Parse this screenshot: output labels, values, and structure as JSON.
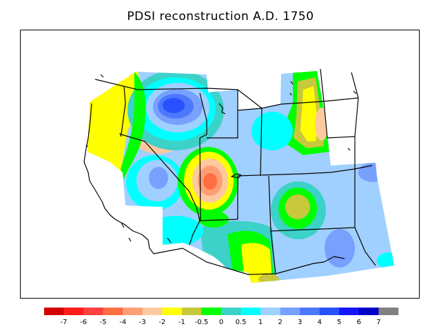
{
  "title": "PDSI reconstruction A.D. 1750",
  "legend": {
    "colors": [
      "#d40000",
      "#ff1c1c",
      "#ff4040",
      "#ff6e40",
      "#ff9e74",
      "#ffc9a0",
      "#ffff00",
      "#c8c83c",
      "#00ff00",
      "#3cd2c8",
      "#00ffff",
      "#a0d0ff",
      "#78a0ff",
      "#4c78ff",
      "#2850ff",
      "#1414ff",
      "#0000c8",
      "#808080"
    ],
    "labels": [
      "-7",
      "-6",
      "-5",
      "-4",
      "-3",
      "-2",
      "-1",
      "-0.5",
      "0",
      "0.5",
      "1",
      "2",
      "3",
      "4",
      "5",
      "6",
      "7"
    ]
  }
}
